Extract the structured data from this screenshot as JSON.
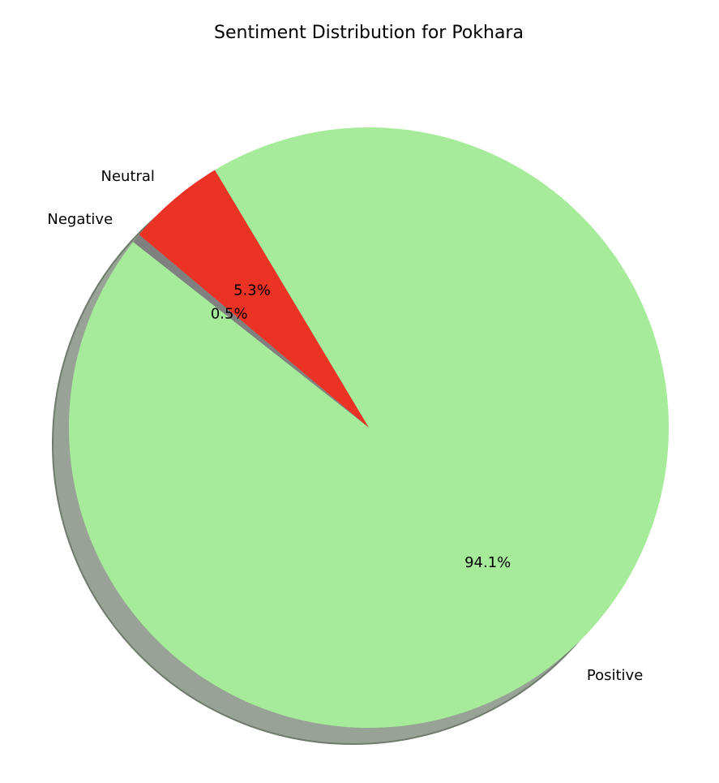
{
  "chart_data": {
    "type": "pie",
    "title": "Sentiment Distribution for Pokhara",
    "start_angle_deg": 140,
    "direction": "counterclockwise",
    "shadow": true,
    "slices": [
      {
        "label": "Negative",
        "value": 0.5,
        "pct_label": "0.5%",
        "color": "#808080"
      },
      {
        "label": "Positive",
        "value": 94.1,
        "pct_label": "94.1%",
        "color": "#a6eb9a"
      },
      {
        "label": "Neutral",
        "value": 5.3,
        "pct_label": "5.3%",
        "color": "#ea3325"
      }
    ]
  }
}
